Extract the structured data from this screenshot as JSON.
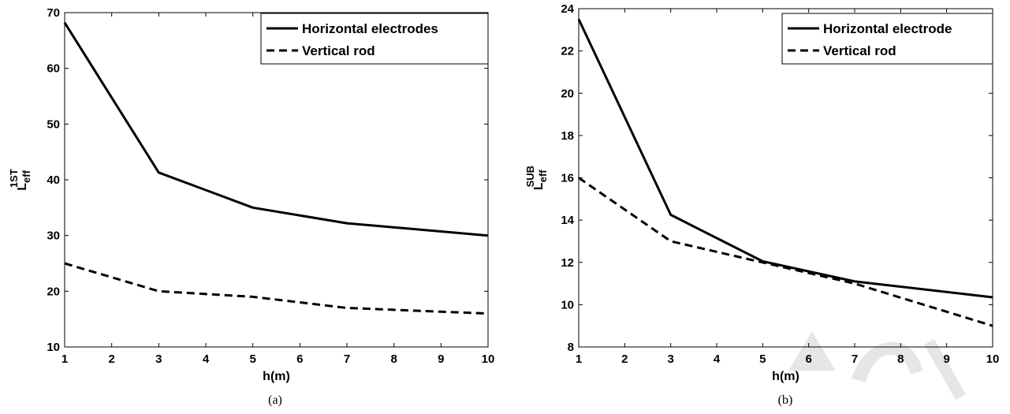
{
  "chart_data": [
    {
      "type": "line",
      "caption": "(a)",
      "xlabel": "h(m)",
      "ylabel": {
        "base": "L",
        "sub": "eff",
        "sup": "1ST"
      },
      "xlim": [
        1,
        10
      ],
      "ylim": [
        10,
        70
      ],
      "xticks": [
        1,
        2,
        3,
        4,
        5,
        6,
        7,
        8,
        9,
        10
      ],
      "yticks": [
        10,
        20,
        30,
        40,
        50,
        60,
        70
      ],
      "grid": false,
      "legend_position": "top-right",
      "series": [
        {
          "name": "Horizontal electrodes",
          "style": "solid",
          "color": "#000000",
          "x": [
            1,
            3,
            5,
            7,
            10
          ],
          "y": [
            68.2,
            41.3,
            35.0,
            32.2,
            30.0
          ]
        },
        {
          "name": "Vertical rod",
          "style": "dashed",
          "color": "#000000",
          "x": [
            1,
            3,
            5,
            7,
            10
          ],
          "y": [
            25.0,
            20.0,
            19.0,
            17.0,
            16.0
          ]
        }
      ]
    },
    {
      "type": "line",
      "caption": "(b)",
      "xlabel": "h(m)",
      "ylabel": {
        "base": "L",
        "sub": "eff",
        "sup": "SUB"
      },
      "xlim": [
        1,
        10
      ],
      "ylim": [
        8,
        24
      ],
      "xticks": [
        1,
        2,
        3,
        4,
        5,
        6,
        7,
        8,
        9,
        10
      ],
      "yticks": [
        8,
        10,
        12,
        14,
        16,
        18,
        20,
        22,
        24
      ],
      "grid": false,
      "legend_position": "top-right",
      "series": [
        {
          "name": "Horizontal electrode",
          "style": "solid",
          "color": "#000000",
          "x": [
            1,
            3,
            5,
            7,
            10
          ],
          "y": [
            23.5,
            14.25,
            12.05,
            11.1,
            10.35
          ]
        },
        {
          "name": "Vertical rod",
          "style": "dashed",
          "color": "#000000",
          "x": [
            1,
            3,
            5,
            7,
            10
          ],
          "y": [
            16.0,
            13.0,
            12.0,
            11.0,
            9.0
          ]
        }
      ]
    }
  ]
}
